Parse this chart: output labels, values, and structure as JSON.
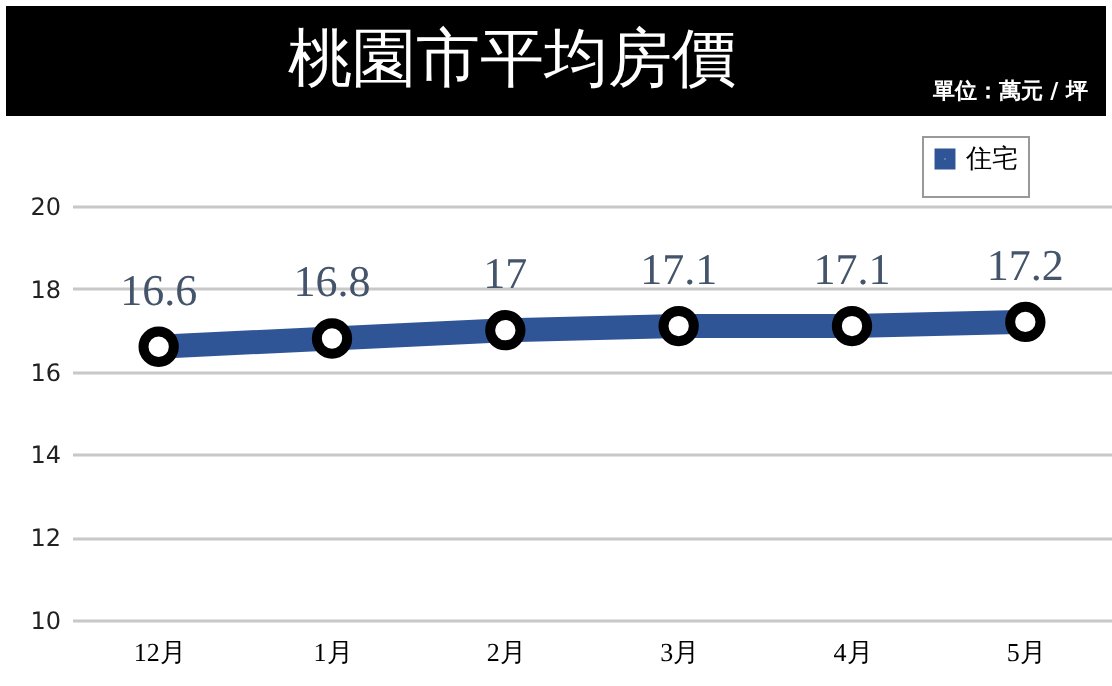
{
  "chart_data": {
    "type": "line",
    "title": "桃園市平均房價",
    "subtitle": "單位：萬元 / 坪",
    "categories": [
      "12月",
      "1月",
      "2月",
      "3月",
      "4月",
      "5月"
    ],
    "series": [
      {
        "name": "住宅",
        "color": "#2f5597",
        "values": [
          16.6,
          16.8,
          17,
          17.1,
          17.1,
          17.2
        ]
      }
    ],
    "ylim": [
      10,
      20
    ],
    "yticks": [
      10,
      12,
      14,
      16,
      18,
      20
    ],
    "grid": "y",
    "legend": "top right",
    "marker": "circle",
    "data_labels": true
  }
}
